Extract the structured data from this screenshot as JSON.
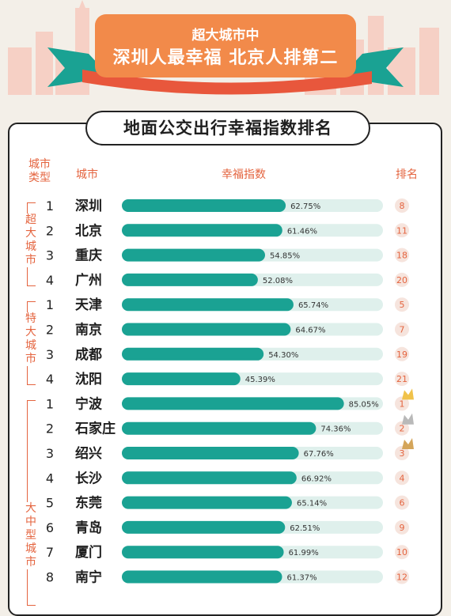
{
  "banner": {
    "line1": "超大城市中",
    "line2": "深圳人最幸福 北京人排第二"
  },
  "colors": {
    "bar": "#1aa293",
    "track": "#dff0ec",
    "accent": "#e4643f",
    "banner_orange": "#f28a4a",
    "banner_red": "#e8573c",
    "leaf_green": "#1aa293",
    "crown_gold": "#f0c24a",
    "crown_silver": "#b9b9b9",
    "crown_bronze": "#d4a55a"
  },
  "headers": {
    "type": "城市类型",
    "city": "城市",
    "index": "幸福指数",
    "rank": "排名"
  },
  "groups": [
    {
      "label": "超大城市"
    },
    {
      "label": "特大城市"
    },
    {
      "label": "大中型城市"
    }
  ],
  "chart_data": {
    "type": "bar",
    "title": "地面公交出行幸福指数排名",
    "xlabel": "幸福指数",
    "ylabel": "城市",
    "xlim": [
      0,
      100
    ],
    "rows": [
      {
        "group": "超大城市",
        "sub_rank": "1",
        "city": "深圳",
        "value": 62.75,
        "label": "62.75%",
        "rank": "8"
      },
      {
        "group": "超大城市",
        "sub_rank": "2",
        "city": "北京",
        "value": 61.46,
        "label": "61.46%",
        "rank": "11"
      },
      {
        "group": "超大城市",
        "sub_rank": "3",
        "city": "重庆",
        "value": 54.85,
        "label": "54.85%",
        "rank": "18"
      },
      {
        "group": "超大城市",
        "sub_rank": "4",
        "city": "广州",
        "value": 52.08,
        "label": "52.08%",
        "rank": "20"
      },
      {
        "group": "特大城市",
        "sub_rank": "1",
        "city": "天津",
        "value": 65.74,
        "label": "65.74%",
        "rank": "5"
      },
      {
        "group": "特大城市",
        "sub_rank": "2",
        "city": "南京",
        "value": 64.67,
        "label": "64.67%",
        "rank": "7"
      },
      {
        "group": "特大城市",
        "sub_rank": "3",
        "city": "成都",
        "value": 54.3,
        "label": "54.30%",
        "rank": "19"
      },
      {
        "group": "特大城市",
        "sub_rank": "4",
        "city": "沈阳",
        "value": 45.39,
        "label": "45.39%",
        "rank": "21"
      },
      {
        "group": "大中型城市",
        "sub_rank": "1",
        "city": "宁波",
        "value": 85.05,
        "label": "85.05%",
        "rank": "1",
        "crown": "gold"
      },
      {
        "group": "大中型城市",
        "sub_rank": "2",
        "city": "石家庄",
        "value": 74.36,
        "label": "74.36%",
        "rank": "2",
        "crown": "silver"
      },
      {
        "group": "大中型城市",
        "sub_rank": "3",
        "city": "绍兴",
        "value": 67.76,
        "label": "67.76%",
        "rank": "3",
        "crown": "bronze"
      },
      {
        "group": "大中型城市",
        "sub_rank": "4",
        "city": "长沙",
        "value": 66.92,
        "label": "66.92%",
        "rank": "4"
      },
      {
        "group": "大中型城市",
        "sub_rank": "5",
        "city": "东莞",
        "value": 65.14,
        "label": "65.14%",
        "rank": "6"
      },
      {
        "group": "大中型城市",
        "sub_rank": "6",
        "city": "青岛",
        "value": 62.51,
        "label": "62.51%",
        "rank": "9"
      },
      {
        "group": "大中型城市",
        "sub_rank": "7",
        "city": "厦门",
        "value": 61.99,
        "label": "61.99%",
        "rank": "10"
      },
      {
        "group": "大中型城市",
        "sub_rank": "8",
        "city": "南宁",
        "value": 61.37,
        "label": "61.37%",
        "rank": "12"
      }
    ]
  }
}
